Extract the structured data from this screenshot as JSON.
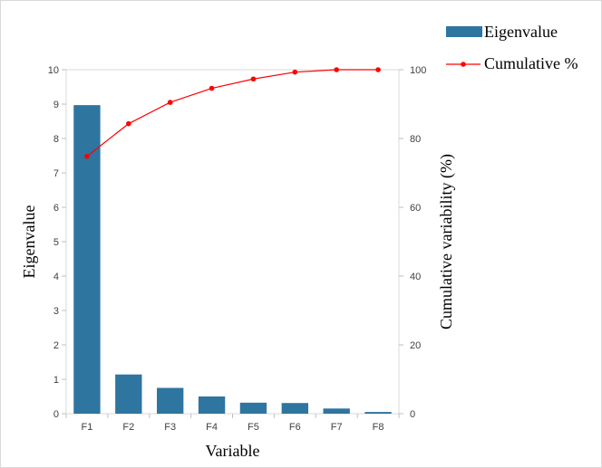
{
  "chart_data": {
    "type": "bar",
    "categories": [
      "F1",
      "F2",
      "F3",
      "F4",
      "F5",
      "F6",
      "F7",
      "F8"
    ],
    "series": [
      {
        "name": "Eigenvalue",
        "type": "bar",
        "axis": "left",
        "color": "#2e75a0",
        "values": [
          8.97,
          1.14,
          0.75,
          0.5,
          0.32,
          0.31,
          0.15,
          0.05
        ]
      },
      {
        "name": "Cumulative %",
        "type": "line",
        "axis": "right",
        "color": "#ff0000",
        "values": [
          74.8,
          84.3,
          90.5,
          94.6,
          97.3,
          99.3,
          100,
          100
        ]
      }
    ],
    "xlabel": "Variable",
    "ylabel": "Eigenvalue",
    "y2label": "Cumulative variability (%)",
    "ylim": [
      0,
      10
    ],
    "y2lim": [
      0,
      100
    ],
    "yticks": [
      "0",
      "1",
      "2",
      "3",
      "4",
      "5",
      "6",
      "7",
      "8",
      "9",
      "10"
    ],
    "y2ticks": [
      "0",
      "20",
      "40",
      "60",
      "80",
      "100"
    ],
    "grid": false,
    "legend": "top-right"
  }
}
